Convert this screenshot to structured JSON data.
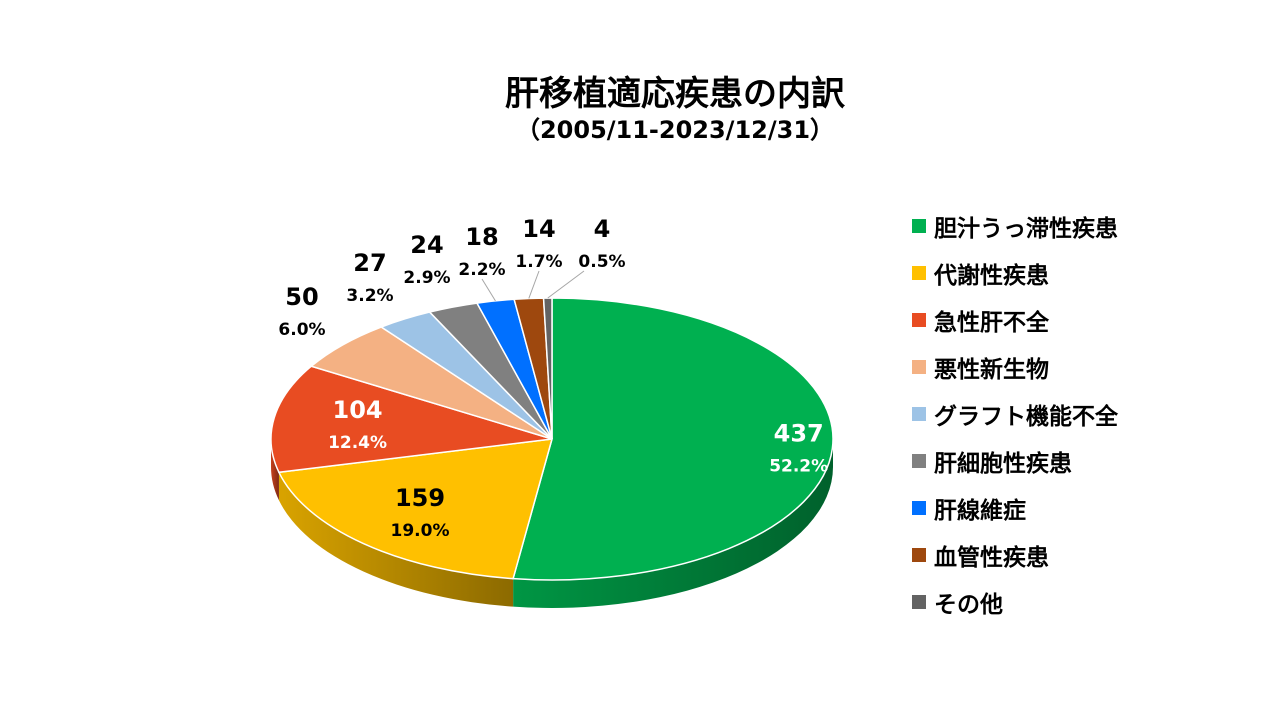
{
  "chart_data": {
    "type": "pie",
    "title": "肝移植適応疾患の内訳",
    "subtitle": "（2005/11-2023/12/31）",
    "legend_position": "right",
    "slices": [
      {
        "label": "胆汁うっ滞性疾患",
        "value": 437,
        "percent": "52.2%",
        "color": "#00b050"
      },
      {
        "label": "代謝性疾患",
        "value": 159,
        "percent": "19.0%",
        "color": "#ffc000"
      },
      {
        "label": "急性肝不全",
        "value": 104,
        "percent": "12.4%",
        "color": "#e84c22"
      },
      {
        "label": "悪性新生物",
        "value": 50,
        "percent": "6.0%",
        "color": "#f4b183"
      },
      {
        "label": "グラフト機能不全",
        "value": 27,
        "percent": "3.2%",
        "color": "#9dc3e6"
      },
      {
        "label": "肝細胞性疾患",
        "value": 24,
        "percent": "2.9%",
        "color": "#808080"
      },
      {
        "label": "肝線維症",
        "value": 18,
        "percent": "2.2%",
        "color": "#0070ff"
      },
      {
        "label": "血管性疾患",
        "value": 14,
        "percent": "1.7%",
        "color": "#9e480e"
      },
      {
        "label": "その他",
        "value": 4,
        "percent": "0.5%",
        "color": "#636363"
      }
    ]
  }
}
